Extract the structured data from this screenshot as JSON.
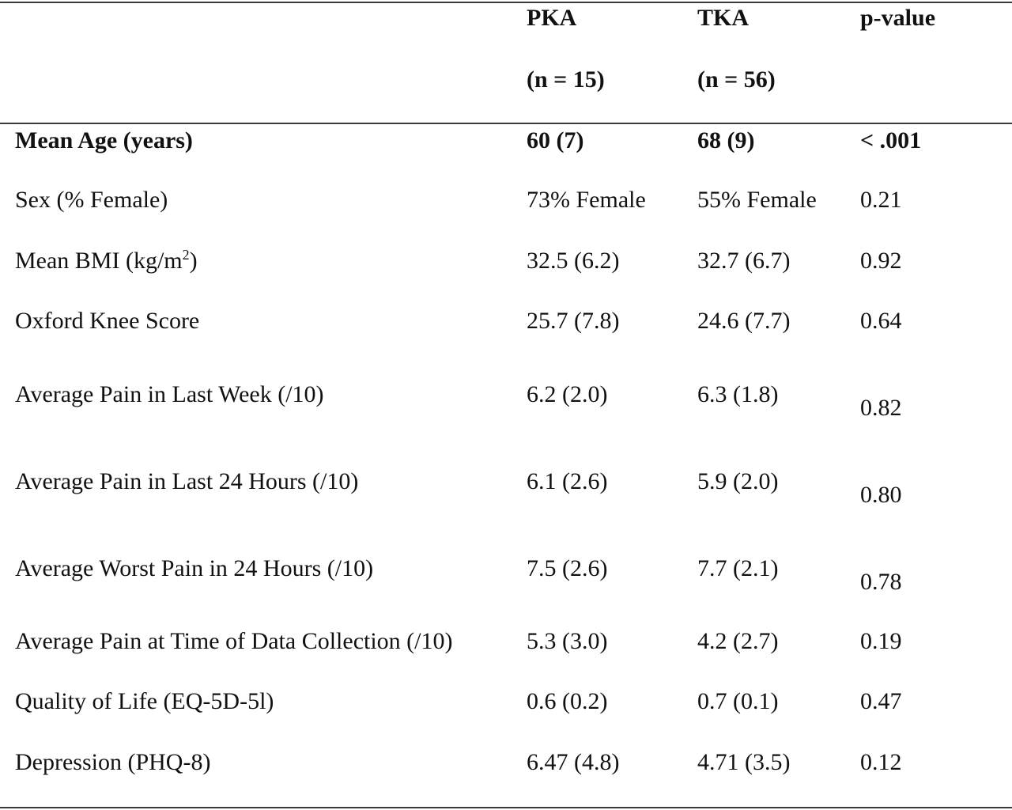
{
  "table": {
    "columns": [
      {
        "label": "PKA",
        "n": "(n = 15)"
      },
      {
        "label": "TKA",
        "n": "(n = 56)"
      },
      {
        "label": "p-value",
        "n": ""
      }
    ],
    "rows": [
      {
        "label": "Mean Age (years)",
        "label_pre": "",
        "label_sup": "",
        "label_post": "",
        "pka": "60 (7)",
        "tka": "68 (9)",
        "p": "< .001",
        "bold": true
      },
      {
        "label": "Sex (% Female)",
        "label_pre": "",
        "label_sup": "",
        "label_post": "",
        "pka": "73% Female",
        "tka": "55% Female",
        "p": "0.21",
        "bold": false
      },
      {
        "label": "",
        "label_pre": "Mean BMI (kg/m",
        "label_sup": "2",
        "label_post": ")",
        "pka": "32.5 (6.2)",
        "tka": "32.7 (6.7)",
        "p": "0.92",
        "bold": false
      },
      {
        "label": "Oxford Knee Score",
        "label_pre": "",
        "label_sup": "",
        "label_post": "",
        "pka": "25.7 (7.8)",
        "tka": "24.6 (7.7)",
        "p": "0.64",
        "bold": false
      },
      {
        "label": "Average Pain in Last Week (/10)",
        "label_pre": "",
        "label_sup": "",
        "label_post": "",
        "pka": "6.2 (2.0)",
        "tka": "6.3 (1.8)",
        "p": "0.82",
        "bold": false
      },
      {
        "label": "Average Pain in Last 24 Hours (/10)",
        "label_pre": "",
        "label_sup": "",
        "label_post": "",
        "pka": "6.1 (2.6)",
        "tka": "5.9 (2.0)",
        "p": "0.80",
        "bold": false
      },
      {
        "label": "Average Worst Pain in 24 Hours (/10)",
        "label_pre": "",
        "label_sup": "",
        "label_post": "",
        "pka": "7.5 (2.6)",
        "tka": "7.7 (2.1)",
        "p": "0.78",
        "bold": false
      },
      {
        "label": "Average Pain at Time of Data Collection (/10)",
        "label_pre": "",
        "label_sup": "",
        "label_post": "",
        "pka": "5.3 (3.0)",
        "tka": "4.2 (2.7)",
        "p": "0.19",
        "bold": false
      },
      {
        "label": "Quality of Life (EQ-5D-5l)",
        "label_pre": "",
        "label_sup": "",
        "label_post": "",
        "pka": "0.6 (0.2)",
        "tka": "0.7 (0.1)",
        "p": "0.47",
        "bold": false
      },
      {
        "label": "Depression (PHQ-8)",
        "label_pre": "",
        "label_sup": "",
        "label_post": "",
        "pka": "6.47 (4.8)",
        "tka": "4.71 (3.5)",
        "p": "0.12",
        "bold": false
      }
    ]
  }
}
